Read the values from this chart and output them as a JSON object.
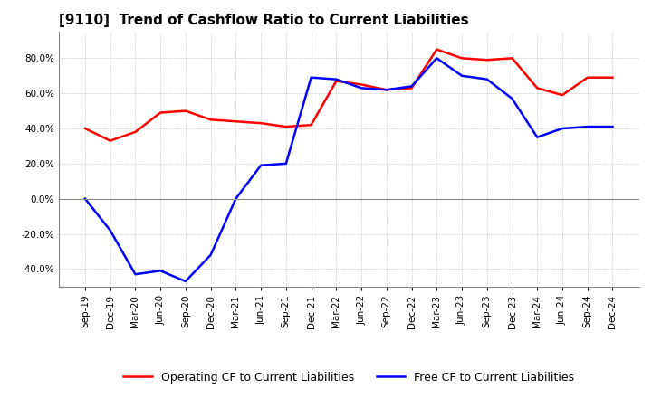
{
  "title": "[9110]  Trend of Cashflow Ratio to Current Liabilities",
  "x_labels": [
    "Sep-19",
    "Dec-19",
    "Mar-20",
    "Jun-20",
    "Sep-20",
    "Dec-20",
    "Mar-21",
    "Jun-21",
    "Sep-21",
    "Dec-21",
    "Mar-22",
    "Jun-22",
    "Sep-22",
    "Dec-22",
    "Mar-23",
    "Jun-23",
    "Sep-23",
    "Dec-23",
    "Mar-24",
    "Jun-24",
    "Sep-24",
    "Dec-24"
  ],
  "operating_cf": [
    40.0,
    33.0,
    38.0,
    49.0,
    50.0,
    45.0,
    44.0,
    43.0,
    41.0,
    42.0,
    67.0,
    65.0,
    62.0,
    63.0,
    85.0,
    80.0,
    79.0,
    80.0,
    63.0,
    59.0,
    69.0,
    69.0
  ],
  "free_cf": [
    0.0,
    -18.0,
    -43.0,
    -41.0,
    -47.0,
    -32.0,
    0.0,
    19.0,
    20.0,
    69.0,
    68.0,
    63.0,
    62.0,
    64.0,
    80.0,
    70.0,
    68.0,
    57.0,
    35.0,
    40.0,
    41.0,
    41.0
  ],
  "operating_color": "#ff0000",
  "free_color": "#0000ff",
  "ylim": [
    -50,
    95
  ],
  "yticks": [
    -40.0,
    -20.0,
    0.0,
    20.0,
    40.0,
    60.0,
    80.0
  ],
  "background_color": "#ffffff",
  "grid_color": "#aaaaaa",
  "title_fontsize": 11,
  "legend_labels": [
    "Operating CF to Current Liabilities",
    "Free CF to Current Liabilities"
  ],
  "legend_fontsize": 9
}
